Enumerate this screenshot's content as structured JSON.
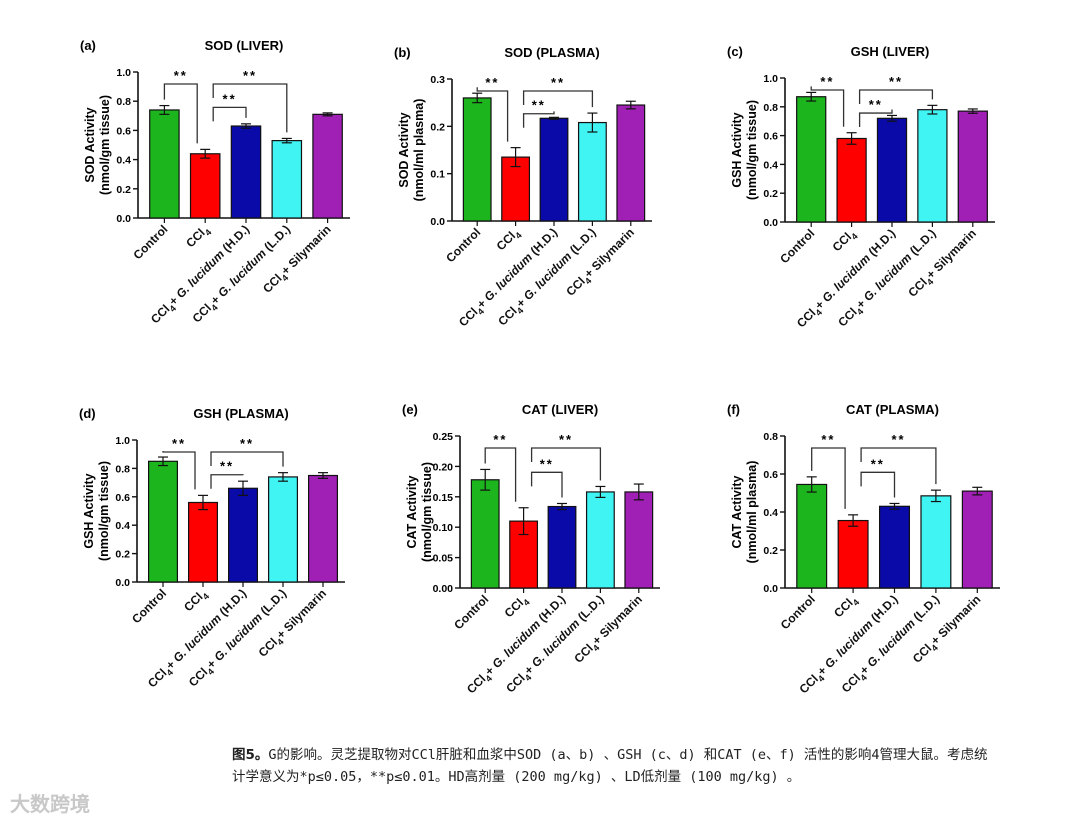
{
  "chart_data": [
    {
      "type": "bar",
      "panel": "(a)",
      "title": "SOD (LIVER)",
      "ylabel": [
        "SOD Activity",
        "(nmol/gm tissue)"
      ],
      "categories": [
        "Control",
        "CCl4",
        "CCl4+ G. lucidum (H.D.)",
        "CCl4+ G. lucidum (L.D.)",
        "CCl4+ Silymarin"
      ],
      "values": [
        0.74,
        0.44,
        0.63,
        0.53,
        0.71
      ],
      "errors": [
        0.03,
        0.03,
        0.015,
        0.015,
        0.01
      ],
      "ylim": [
        0,
        1.0
      ],
      "yticks": [
        "0.0",
        "0.2",
        "0.4",
        "0.6",
        "0.8",
        "1.0"
      ],
      "tickstep": 0.2,
      "significance": [
        {
          "pair": [
            0,
            1
          ],
          "label": "**"
        },
        {
          "pair": [
            1,
            2
          ],
          "label": "**"
        },
        {
          "pair": [
            1,
            3
          ],
          "label": "**"
        }
      ]
    },
    {
      "type": "bar",
      "panel": "(b)",
      "title": "SOD (PLASMA)",
      "ylabel": [
        "SOD Activity",
        "(nmol/ml plasma)"
      ],
      "categories": [
        "Control",
        "CCl4",
        "CCl4+ G. lucidum (H.D.)",
        "CCl4+ G. lucidum (L.D.)",
        "CCl4+ Silymarin"
      ],
      "values": [
        0.26,
        0.135,
        0.217,
        0.208,
        0.245
      ],
      "errors": [
        0.01,
        0.02,
        0.002,
        0.02,
        0.008
      ],
      "ylim": [
        0,
        0.3
      ],
      "yticks": [
        "0.0",
        "0.1",
        "0.2",
        "0.3"
      ],
      "tickstep": 0.1,
      "significance": [
        {
          "pair": [
            0,
            1
          ],
          "label": "**"
        },
        {
          "pair": [
            1,
            2
          ],
          "label": "**"
        },
        {
          "pair": [
            1,
            3
          ],
          "label": "**"
        }
      ]
    },
    {
      "type": "bar",
      "panel": "(c)",
      "title": "GSH (LIVER)",
      "ylabel": [
        "GSH Activity",
        "(nmol/gm tissue)"
      ],
      "categories": [
        "Control",
        "CCl4",
        "CCl4+ G. lucidum (H.D.)",
        "CCl4+ G. lucidum (L.D.)",
        "CCl4+ Silymarin"
      ],
      "values": [
        0.87,
        0.58,
        0.72,
        0.78,
        0.77
      ],
      "errors": [
        0.03,
        0.04,
        0.02,
        0.03,
        0.015
      ],
      "ylim": [
        0,
        1.0
      ],
      "yticks": [
        "0.0",
        "0.2",
        "0.4",
        "0.6",
        "0.8",
        "1.0"
      ],
      "tickstep": 0.2,
      "significance": [
        {
          "pair": [
            0,
            1
          ],
          "label": "**"
        },
        {
          "pair": [
            1,
            2
          ],
          "label": "**"
        },
        {
          "pair": [
            1,
            3
          ],
          "label": "**"
        }
      ]
    },
    {
      "type": "bar",
      "panel": "(d)",
      "title": "GSH (PLASMA)",
      "ylabel": [
        "GSH Activity",
        "(nmol/gm tissue)"
      ],
      "categories": [
        "Control",
        "CCl4",
        "CCl4+ G. lucidum (H.D.)",
        "CCl4+ G. lucidum (L.D.)",
        "CCl4+ Silymarin"
      ],
      "values": [
        0.85,
        0.56,
        0.66,
        0.74,
        0.75
      ],
      "errors": [
        0.03,
        0.05,
        0.05,
        0.03,
        0.02
      ],
      "ylim": [
        0,
        1.0
      ],
      "yticks": [
        "0.0",
        "0.2",
        "0.4",
        "0.6",
        "0.8",
        "1.0"
      ],
      "tickstep": 0.2,
      "significance": [
        {
          "pair": [
            0,
            1
          ],
          "label": "**"
        },
        {
          "pair": [
            1,
            2
          ],
          "label": "**"
        },
        {
          "pair": [
            1,
            3
          ],
          "label": "**"
        }
      ]
    },
    {
      "type": "bar",
      "panel": "(e)",
      "title": "CAT (LIVER)",
      "ylabel": [
        "CAT Activity",
        "(nmol/gm tissue)"
      ],
      "categories": [
        "Control",
        "CCl4",
        "CCl4+ G. lucidum (H.D.)",
        "CCl4+ G. lucidum (L.D.)",
        "CCl4+ Silymarin"
      ],
      "values": [
        0.178,
        0.11,
        0.134,
        0.158,
        0.158
      ],
      "errors": [
        0.017,
        0.022,
        0.005,
        0.009,
        0.013
      ],
      "ylim": [
        0,
        0.25
      ],
      "yticks": [
        "0.00",
        "0.05",
        "0.10",
        "0.15",
        "0.20",
        "0.25"
      ],
      "tickstep": 0.05,
      "significance": [
        {
          "pair": [
            0,
            1
          ],
          "label": "**"
        },
        {
          "pair": [
            1,
            2
          ],
          "label": "**"
        },
        {
          "pair": [
            1,
            3
          ],
          "label": "**"
        }
      ]
    },
    {
      "type": "bar",
      "panel": "(f)",
      "title": "CAT (PLASMA)",
      "ylabel": [
        "CAT Activity",
        "(nmol/ml plasma)"
      ],
      "categories": [
        "Control",
        "CCl4",
        "CCl4+ G. lucidum (H.D.)",
        "CCl4+ G. lucidum (L.D.)",
        "CCl4+ Silymarin"
      ],
      "values": [
        0.545,
        0.355,
        0.43,
        0.485,
        0.51
      ],
      "errors": [
        0.04,
        0.03,
        0.015,
        0.03,
        0.02
      ],
      "ylim": [
        0,
        0.8
      ],
      "yticks": [
        "0.0",
        "0.2",
        "0.4",
        "0.6",
        "0.8"
      ],
      "tickstep": 0.2,
      "significance": [
        {
          "pair": [
            0,
            1
          ],
          "label": "**"
        },
        {
          "pair": [
            1,
            2
          ],
          "label": "**"
        },
        {
          "pair": [
            1,
            3
          ],
          "label": "**"
        }
      ]
    }
  ],
  "colors": [
    "#1db51d",
    "#ff0000",
    "#0a0aa8",
    "#40f4f4",
    "#a01fb4"
  ],
  "caption": {
    "label": "图5。",
    "text": "G的影响。灵芝提取物对CCl肝脏和血浆中SOD (a、b) 、GSH (c、d) 和CAT (e、f) 活性的影响4管理大鼠。考虑统计学意义为*p≤0.05，**p≤0.01。HD高剂量 (200 mg/kg) 、LD低剂量 (100 mg/kg) 。"
  },
  "watermark": "大数跨境"
}
